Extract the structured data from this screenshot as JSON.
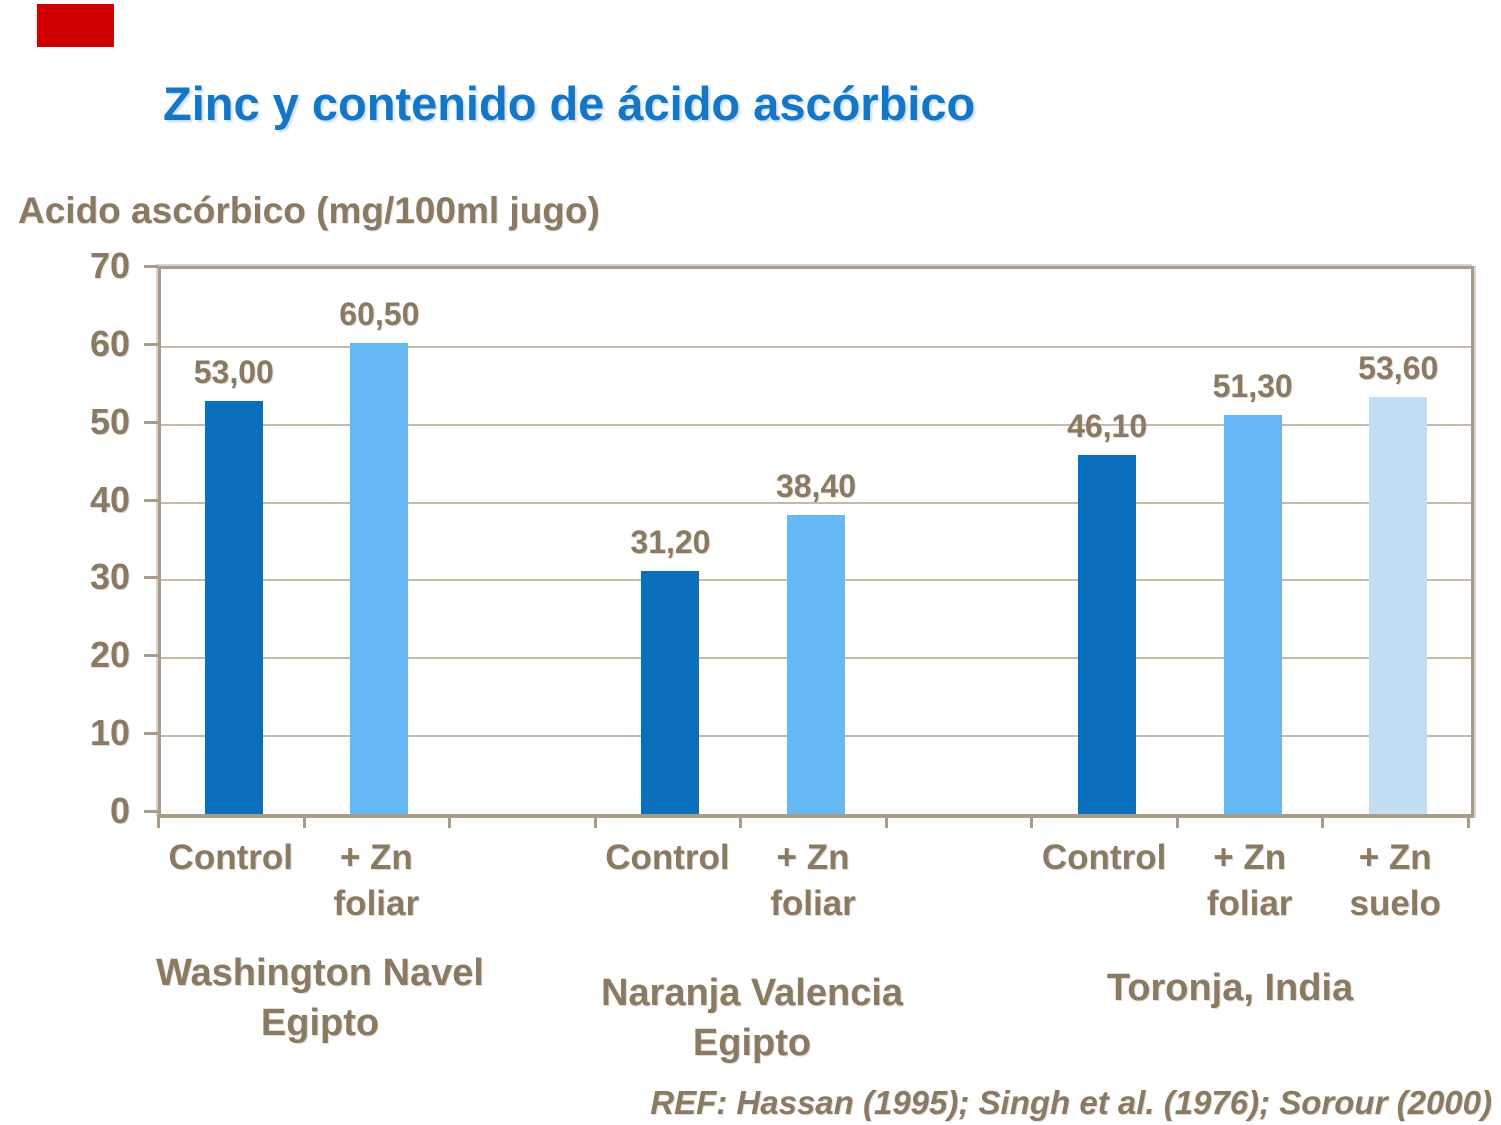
{
  "slide": {
    "title": "Zinc y contenido de ácido ascórbico",
    "reference": "REF: Hassan (1995); Singh et al. (1976); Sorour (2000)",
    "colors": {
      "accent_red": "#d00000",
      "title_blue": "#1476c5",
      "text_brown": "#8a7963",
      "grid": "#c5baaa",
      "frame": "#a89c8c"
    }
  },
  "chart_data": {
    "type": "bar",
    "title": "Zinc y contenido de ácido ascórbico",
    "ylabel": "Acido ascórbico (mg/100ml jugo)",
    "xlabel": "",
    "ylim": [
      0,
      70
    ],
    "yticks": [
      0,
      10,
      20,
      30,
      40,
      50,
      60,
      70
    ],
    "grid": true,
    "legend": "none",
    "bar_colors": {
      "dark_blue": "#0a70be",
      "light_blue": "#66b9f4",
      "pale_blue": "#c3ddf3"
    },
    "groups": [
      {
        "name_lines": [
          "Washington Navel",
          "Egipto"
        ],
        "bars": [
          {
            "slot": 0,
            "category_lines": [
              "Control"
            ],
            "value": 53.0,
            "label": "53,00",
            "color": "dark_blue"
          },
          {
            "slot": 1,
            "category_lines": [
              "+ Zn",
              "foliar"
            ],
            "value": 60.5,
            "label": "60,50",
            "color": "light_blue"
          }
        ]
      },
      {
        "name_lines": [
          "Naranja Valencia",
          "Egipto"
        ],
        "bars": [
          {
            "slot": 3,
            "category_lines": [
              "Control"
            ],
            "value": 31.2,
            "label": "31,20",
            "color": "dark_blue"
          },
          {
            "slot": 4,
            "category_lines": [
              "+ Zn",
              "foliar"
            ],
            "value": 38.4,
            "label": "38,40",
            "color": "light_blue"
          }
        ]
      },
      {
        "name_lines": [
          "Toronja, India"
        ],
        "bars": [
          {
            "slot": 6,
            "category_lines": [
              "Control"
            ],
            "value": 46.1,
            "label": "46,10",
            "color": "dark_blue"
          },
          {
            "slot": 7,
            "category_lines": [
              "+ Zn",
              "foliar"
            ],
            "value": 51.3,
            "label": "51,30",
            "color": "light_blue"
          },
          {
            "slot": 8,
            "category_lines": [
              "+ Zn",
              "suelo"
            ],
            "value": 53.6,
            "label": "53,60",
            "color": "pale_blue"
          }
        ]
      }
    ]
  }
}
